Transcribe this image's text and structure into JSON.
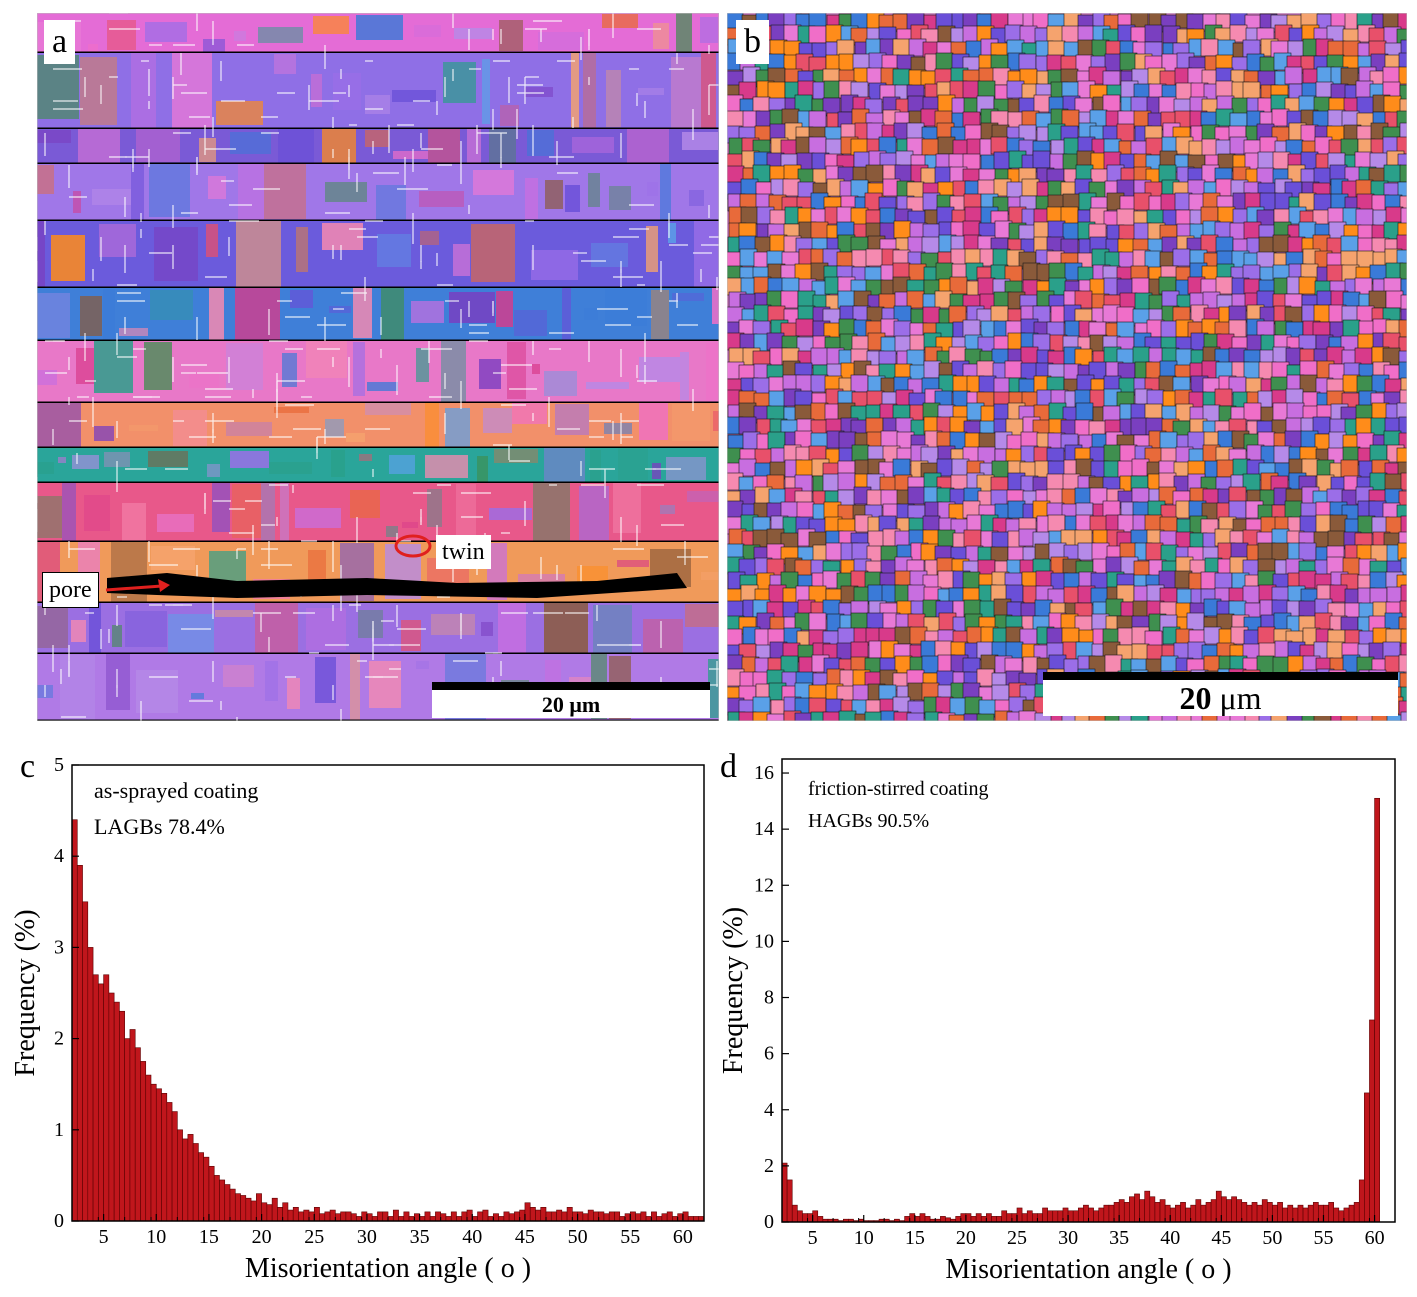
{
  "panels": {
    "a": {
      "letter": "a",
      "scalebar_text": "20 μm",
      "label_pore": "pore",
      "label_twin": "twin"
    },
    "b": {
      "letter": "b",
      "scalebar_value": "20",
      "scalebar_unit": " μm"
    },
    "c": {
      "letter": "c"
    },
    "d": {
      "letter": "d"
    }
  },
  "colors": {
    "bar_fill": "#c0161c",
    "bar_stroke": "#5a0000",
    "grain_palette": [
      "#e879d6",
      "#9b6ee8",
      "#6a4fd8",
      "#c86ee0",
      "#3a7ad8",
      "#e86a3a",
      "#2aa08a",
      "#f5a36e",
      "#d83a8a",
      "#8a5a3a",
      "#5aa0e8",
      "#f58ab0",
      "#3f8f4f",
      "#b58ae8",
      "#e8506a",
      "#ff8c1a",
      "#7a3fc0",
      "#f06ec8"
    ]
  },
  "chart_data": [
    {
      "type": "bar",
      "panel": "c",
      "annotations": [
        "as-sprayed coating",
        "LAGBs 78.4%"
      ],
      "xlabel": "Misorientation angle ( o )",
      "ylabel": "Frequency (%)",
      "xlim": [
        2,
        62
      ],
      "ylim": [
        0,
        5
      ],
      "xticks": [
        5,
        10,
        15,
        20,
        25,
        30,
        35,
        40,
        45,
        50,
        55,
        60
      ],
      "yticks": [
        0,
        1,
        2,
        3,
        4,
        5
      ],
      "x": [
        2.0,
        2.5,
        3.0,
        3.5,
        4.0,
        4.5,
        5.0,
        5.5,
        6.0,
        6.5,
        7.0,
        7.5,
        8.0,
        8.5,
        9.0,
        9.5,
        10.0,
        10.5,
        11.0,
        11.5,
        12.0,
        12.5,
        13.0,
        13.5,
        14.0,
        14.5,
        15.0,
        15.5,
        16.0,
        16.5,
        17.0,
        17.5,
        18.0,
        18.5,
        19.0,
        19.5,
        20.0,
        20.5,
        21.0,
        21.5,
        22.0,
        22.5,
        23.0,
        23.5,
        24.0,
        24.5,
        25.0,
        25.5,
        26.0,
        26.5,
        27.0,
        27.5,
        28.0,
        28.5,
        29.0,
        29.5,
        30.0,
        30.5,
        31.0,
        31.5,
        32.0,
        32.5,
        33.0,
        33.5,
        34.0,
        34.5,
        35.0,
        35.5,
        36.0,
        36.5,
        37.0,
        37.5,
        38.0,
        38.5,
        39.0,
        39.5,
        40.0,
        40.5,
        41.0,
        41.5,
        42.0,
        42.5,
        43.0,
        43.5,
        44.0,
        44.5,
        45.0,
        45.5,
        46.0,
        46.5,
        47.0,
        47.5,
        48.0,
        48.5,
        49.0,
        49.5,
        50.0,
        50.5,
        51.0,
        51.5,
        52.0,
        52.5,
        53.0,
        53.5,
        54.0,
        54.5,
        55.0,
        55.5,
        56.0,
        56.5,
        57.0,
        57.5,
        58.0,
        58.5,
        59.0,
        59.5,
        60.0,
        60.5,
        61.0,
        61.5
      ],
      "values": [
        4.4,
        3.9,
        3.5,
        3.0,
        2.7,
        2.6,
        2.7,
        2.5,
        2.4,
        2.3,
        2.0,
        2.1,
        1.9,
        1.75,
        1.6,
        1.5,
        1.45,
        1.4,
        1.3,
        1.2,
        1.0,
        0.9,
        0.95,
        0.85,
        0.75,
        0.7,
        0.6,
        0.5,
        0.45,
        0.4,
        0.35,
        0.3,
        0.28,
        0.25,
        0.22,
        0.3,
        0.2,
        0.18,
        0.25,
        0.15,
        0.2,
        0.12,
        0.15,
        0.1,
        0.12,
        0.1,
        0.15,
        0.08,
        0.1,
        0.12,
        0.08,
        0.1,
        0.1,
        0.08,
        0.05,
        0.1,
        0.08,
        0.05,
        0.1,
        0.1,
        0.05,
        0.12,
        0.05,
        0.1,
        0.05,
        0.08,
        0.05,
        0.1,
        0.05,
        0.1,
        0.08,
        0.05,
        0.1,
        0.05,
        0.1,
        0.12,
        0.05,
        0.1,
        0.12,
        0.05,
        0.08,
        0.05,
        0.1,
        0.08,
        0.1,
        0.12,
        0.2,
        0.15,
        0.12,
        0.15,
        0.1,
        0.1,
        0.12,
        0.1,
        0.15,
        0.1,
        0.1,
        0.08,
        0.12,
        0.1,
        0.1,
        0.08,
        0.1,
        0.1,
        0.05,
        0.08,
        0.1,
        0.08,
        0.1,
        0.05,
        0.1,
        0.05,
        0.08,
        0.1,
        0.05,
        0.08,
        0.1,
        0.05,
        0.05,
        0.05
      ]
    },
    {
      "type": "bar",
      "panel": "d",
      "annotations": [
        "friction-stirred coating",
        "HAGBs 90.5%"
      ],
      "xlabel": "Misorientation angle ( o )",
      "ylabel": "Frequency (%)",
      "xlim": [
        2,
        62
      ],
      "ylim": [
        0,
        16.5
      ],
      "xticks": [
        5,
        10,
        15,
        20,
        25,
        30,
        35,
        40,
        45,
        50,
        55,
        60
      ],
      "yticks": [
        0,
        2,
        4,
        6,
        8,
        10,
        12,
        14,
        16
      ],
      "x": [
        2.0,
        2.5,
        3.0,
        3.5,
        4.0,
        4.5,
        5.0,
        5.5,
        6.0,
        6.5,
        7.0,
        7.5,
        8.0,
        8.5,
        9.0,
        9.5,
        10.0,
        10.5,
        11.0,
        11.5,
        12.0,
        12.5,
        13.0,
        13.5,
        14.0,
        14.5,
        15.0,
        15.5,
        16.0,
        16.5,
        17.0,
        17.5,
        18.0,
        18.5,
        19.0,
        19.5,
        20.0,
        20.5,
        21.0,
        21.5,
        22.0,
        22.5,
        23.0,
        23.5,
        24.0,
        24.5,
        25.0,
        25.5,
        26.0,
        26.5,
        27.0,
        27.5,
        28.0,
        28.5,
        29.0,
        29.5,
        30.0,
        30.5,
        31.0,
        31.5,
        32.0,
        32.5,
        33.0,
        33.5,
        34.0,
        34.5,
        35.0,
        35.5,
        36.0,
        36.5,
        37.0,
        37.5,
        38.0,
        38.5,
        39.0,
        39.5,
        40.0,
        40.5,
        41.0,
        41.5,
        42.0,
        42.5,
        43.0,
        43.5,
        44.0,
        44.5,
        45.0,
        45.5,
        46.0,
        46.5,
        47.0,
        47.5,
        48.0,
        48.5,
        49.0,
        49.5,
        50.0,
        50.5,
        51.0,
        51.5,
        52.0,
        52.5,
        53.0,
        53.5,
        54.0,
        54.5,
        55.0,
        55.5,
        56.0,
        56.5,
        57.0,
        57.5,
        58.0,
        58.5,
        59.0,
        59.5,
        60.0,
        60.5,
        61.0,
        61.5
      ],
      "values": [
        2.1,
        1.5,
        0.6,
        0.4,
        0.3,
        0.3,
        0.4,
        0.2,
        0.1,
        0.1,
        0.1,
        0.05,
        0.1,
        0.1,
        0.05,
        0.1,
        0.05,
        0.05,
        0.05,
        0.1,
        0.1,
        0.05,
        0.1,
        0.05,
        0.2,
        0.3,
        0.2,
        0.3,
        0.2,
        0.1,
        0.1,
        0.2,
        0.15,
        0.1,
        0.2,
        0.3,
        0.3,
        0.2,
        0.3,
        0.2,
        0.3,
        0.2,
        0.2,
        0.4,
        0.3,
        0.3,
        0.5,
        0.3,
        0.4,
        0.3,
        0.3,
        0.5,
        0.4,
        0.4,
        0.4,
        0.5,
        0.4,
        0.4,
        0.5,
        0.6,
        0.5,
        0.4,
        0.5,
        0.6,
        0.6,
        0.7,
        0.8,
        0.7,
        0.9,
        1.0,
        0.8,
        1.1,
        0.9,
        0.7,
        0.8,
        0.6,
        0.5,
        0.6,
        0.7,
        0.5,
        0.6,
        0.8,
        0.6,
        0.7,
        0.8,
        1.1,
        0.9,
        0.8,
        0.9,
        0.8,
        0.7,
        0.6,
        0.7,
        0.6,
        0.8,
        0.7,
        0.6,
        0.7,
        0.5,
        0.6,
        0.5,
        0.6,
        0.5,
        0.6,
        0.7,
        0.6,
        0.6,
        0.7,
        0.5,
        0.4,
        0.5,
        0.6,
        0.7,
        1.5,
        4.6,
        7.2,
        15.1,
        0.0,
        0.0,
        0.0
      ]
    }
  ]
}
